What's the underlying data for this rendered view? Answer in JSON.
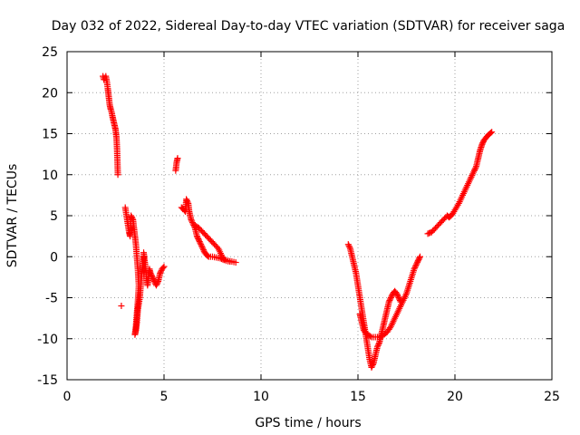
{
  "chart_data": {
    "type": "scatter",
    "title": "Day 032 of 2022, Sidereal Day-to-day VTEC variation (SDTVAR) for receiver saga",
    "xlabel": "GPS time / hours",
    "ylabel": "SDTVAR / TECUs",
    "xlim": [
      0,
      25
    ],
    "ylim": [
      -15,
      25
    ],
    "xticks": [
      0,
      5,
      10,
      15,
      20,
      25
    ],
    "yticks": [
      -15,
      -10,
      -5,
      0,
      5,
      10,
      15,
      20,
      25
    ],
    "grid": true,
    "marker": "+",
    "color": "#ff0000",
    "series": [
      {
        "name": "SDTVAR",
        "segments": [
          [
            [
              1.85,
              22
            ],
            [
              1.9,
              21.6
            ],
            [
              2.0,
              22
            ],
            [
              2.05,
              21.4
            ],
            [
              2.1,
              20.5
            ],
            [
              2.15,
              19.5
            ],
            [
              2.2,
              18.5
            ],
            [
              2.25,
              18
            ],
            [
              2.3,
              17.6
            ],
            [
              2.35,
              17
            ],
            [
              2.4,
              16.5
            ],
            [
              2.45,
              16
            ],
            [
              2.5,
              15.5
            ],
            [
              2.55,
              14.5
            ],
            [
              2.58,
              13
            ],
            [
              2.6,
              11.5
            ],
            [
              2.62,
              10
            ]
          ],
          [
            [
              3.0,
              6
            ],
            [
              3.1,
              4.5
            ],
            [
              3.2,
              3
            ],
            [
              3.25,
              2.5
            ],
            [
              3.3,
              5
            ],
            [
              3.4,
              4.5
            ],
            [
              3.45,
              3.5
            ],
            [
              3.5,
              2.5
            ],
            [
              3.55,
              1.5
            ],
            [
              3.6,
              0
            ],
            [
              3.65,
              -1.5
            ],
            [
              3.7,
              -3.5
            ],
            [
              3.65,
              -5.5
            ],
            [
              3.6,
              -7
            ],
            [
              3.55,
              -8.5
            ],
            [
              3.5,
              -9.5
            ],
            [
              3.55,
              -9
            ],
            [
              3.6,
              -8
            ],
            [
              3.65,
              -6.5
            ],
            [
              3.75,
              -5
            ],
            [
              3.8,
              -3.5
            ],
            [
              3.85,
              -2
            ],
            [
              3.9,
              -1
            ],
            [
              3.95,
              0
            ]
          ],
          [
            [
              3.95,
              0.5
            ],
            [
              4.0,
              -0.5
            ],
            [
              4.05,
              -1.5
            ],
            [
              4.1,
              -2.5
            ],
            [
              4.15,
              -3.5
            ],
            [
              4.2,
              -2.5
            ],
            [
              4.25,
              -1.5
            ],
            [
              4.3,
              -2
            ],
            [
              4.4,
              -2.5
            ],
            [
              4.5,
              -3
            ],
            [
              4.6,
              -3.5
            ],
            [
              4.7,
              -3
            ],
            [
              4.8,
              -2
            ],
            [
              4.9,
              -1.5
            ],
            [
              5.0,
              -1.2
            ]
          ],
          [
            [
              2.8,
              -6
            ]
          ],
          [
            [
              5.6,
              10.5
            ],
            [
              5.65,
              11.5
            ],
            [
              5.7,
              12
            ]
          ],
          [
            [
              5.9,
              6
            ],
            [
              6.0,
              5.8
            ],
            [
              6.1,
              5.5
            ],
            [
              6.15,
              7
            ],
            [
              6.25,
              6.5
            ],
            [
              6.3,
              5.5
            ],
            [
              6.4,
              4.5
            ],
            [
              6.5,
              4
            ],
            [
              6.6,
              3.5
            ],
            [
              6.7,
              2.5
            ],
            [
              6.8,
              2
            ],
            [
              6.9,
              1.5
            ],
            [
              7.0,
              1
            ],
            [
              7.1,
              0.5
            ],
            [
              7.2,
              0.2
            ],
            [
              7.3,
              0
            ],
            [
              7.5,
              0
            ],
            [
              7.7,
              -0.1
            ],
            [
              7.9,
              -0.2
            ],
            [
              8.1,
              -0.4
            ],
            [
              8.3,
              -0.5
            ],
            [
              8.5,
              -0.6
            ],
            [
              8.7,
              -0.7
            ]
          ],
          [
            [
              6.6,
              3.8
            ],
            [
              6.8,
              3.5
            ],
            [
              7.0,
              3
            ],
            [
              7.2,
              2.5
            ],
            [
              7.4,
              2
            ],
            [
              7.6,
              1.5
            ],
            [
              7.8,
              1
            ],
            [
              8.0,
              0
            ],
            [
              8.2,
              -0.5
            ],
            [
              8.4,
              -0.6
            ]
          ],
          [
            [
              14.5,
              1.5
            ],
            [
              14.6,
              1
            ],
            [
              14.7,
              0
            ],
            [
              14.8,
              -1
            ],
            [
              14.9,
              -2
            ],
            [
              15.0,
              -3.5
            ],
            [
              15.1,
              -5
            ],
            [
              15.2,
              -6.5
            ],
            [
              15.3,
              -8
            ],
            [
              15.4,
              -9.5
            ],
            [
              15.5,
              -11
            ],
            [
              15.6,
              -12.5
            ],
            [
              15.7,
              -13.5
            ],
            [
              15.8,
              -13
            ],
            [
              15.9,
              -12
            ],
            [
              16.0,
              -11
            ],
            [
              16.1,
              -10.5
            ],
            [
              16.2,
              -9.5
            ],
            [
              16.3,
              -8.5
            ],
            [
              16.4,
              -7.5
            ],
            [
              16.5,
              -6.5
            ],
            [
              16.6,
              -5.5
            ],
            [
              16.7,
              -5
            ],
            [
              16.8,
              -4.5
            ],
            [
              16.9,
              -4.2
            ],
            [
              17.0,
              -4.5
            ],
            [
              17.1,
              -5
            ],
            [
              17.2,
              -5.5
            ]
          ],
          [
            [
              15.1,
              -7
            ],
            [
              15.2,
              -8
            ],
            [
              15.3,
              -9
            ],
            [
              15.5,
              -9.5
            ],
            [
              15.7,
              -9.8
            ],
            [
              15.9,
              -9.8
            ],
            [
              16.1,
              -9.8
            ],
            [
              16.3,
              -9.6
            ],
            [
              16.5,
              -9.2
            ],
            [
              16.7,
              -8.5
            ],
            [
              16.9,
              -7.5
            ],
            [
              17.1,
              -6.5
            ],
            [
              17.3,
              -5.5
            ],
            [
              17.5,
              -4.5
            ],
            [
              17.7,
              -3
            ],
            [
              17.9,
              -1.5
            ],
            [
              18.0,
              -1
            ],
            [
              18.1,
              -0.5
            ],
            [
              18.2,
              0
            ]
          ],
          [
            [
              18.6,
              2.8
            ],
            [
              18.8,
              3
            ],
            [
              19.0,
              3.5
            ],
            [
              19.2,
              4
            ],
            [
              19.4,
              4.5
            ],
            [
              19.6,
              5
            ],
            [
              19.7,
              4.8
            ],
            [
              19.8,
              5
            ],
            [
              19.9,
              5.3
            ],
            [
              20.0,
              5.7
            ],
            [
              20.2,
              6.5
            ],
            [
              20.4,
              7.5
            ],
            [
              20.6,
              8.5
            ],
            [
              20.8,
              9.5
            ],
            [
              21.0,
              10.5
            ],
            [
              21.1,
              11
            ],
            [
              21.2,
              12
            ],
            [
              21.3,
              13
            ],
            [
              21.4,
              13.7
            ],
            [
              21.5,
              14.2
            ],
            [
              21.6,
              14.5
            ],
            [
              21.7,
              14.8
            ],
            [
              21.8,
              15
            ],
            [
              21.9,
              15.2
            ]
          ]
        ]
      }
    ]
  }
}
